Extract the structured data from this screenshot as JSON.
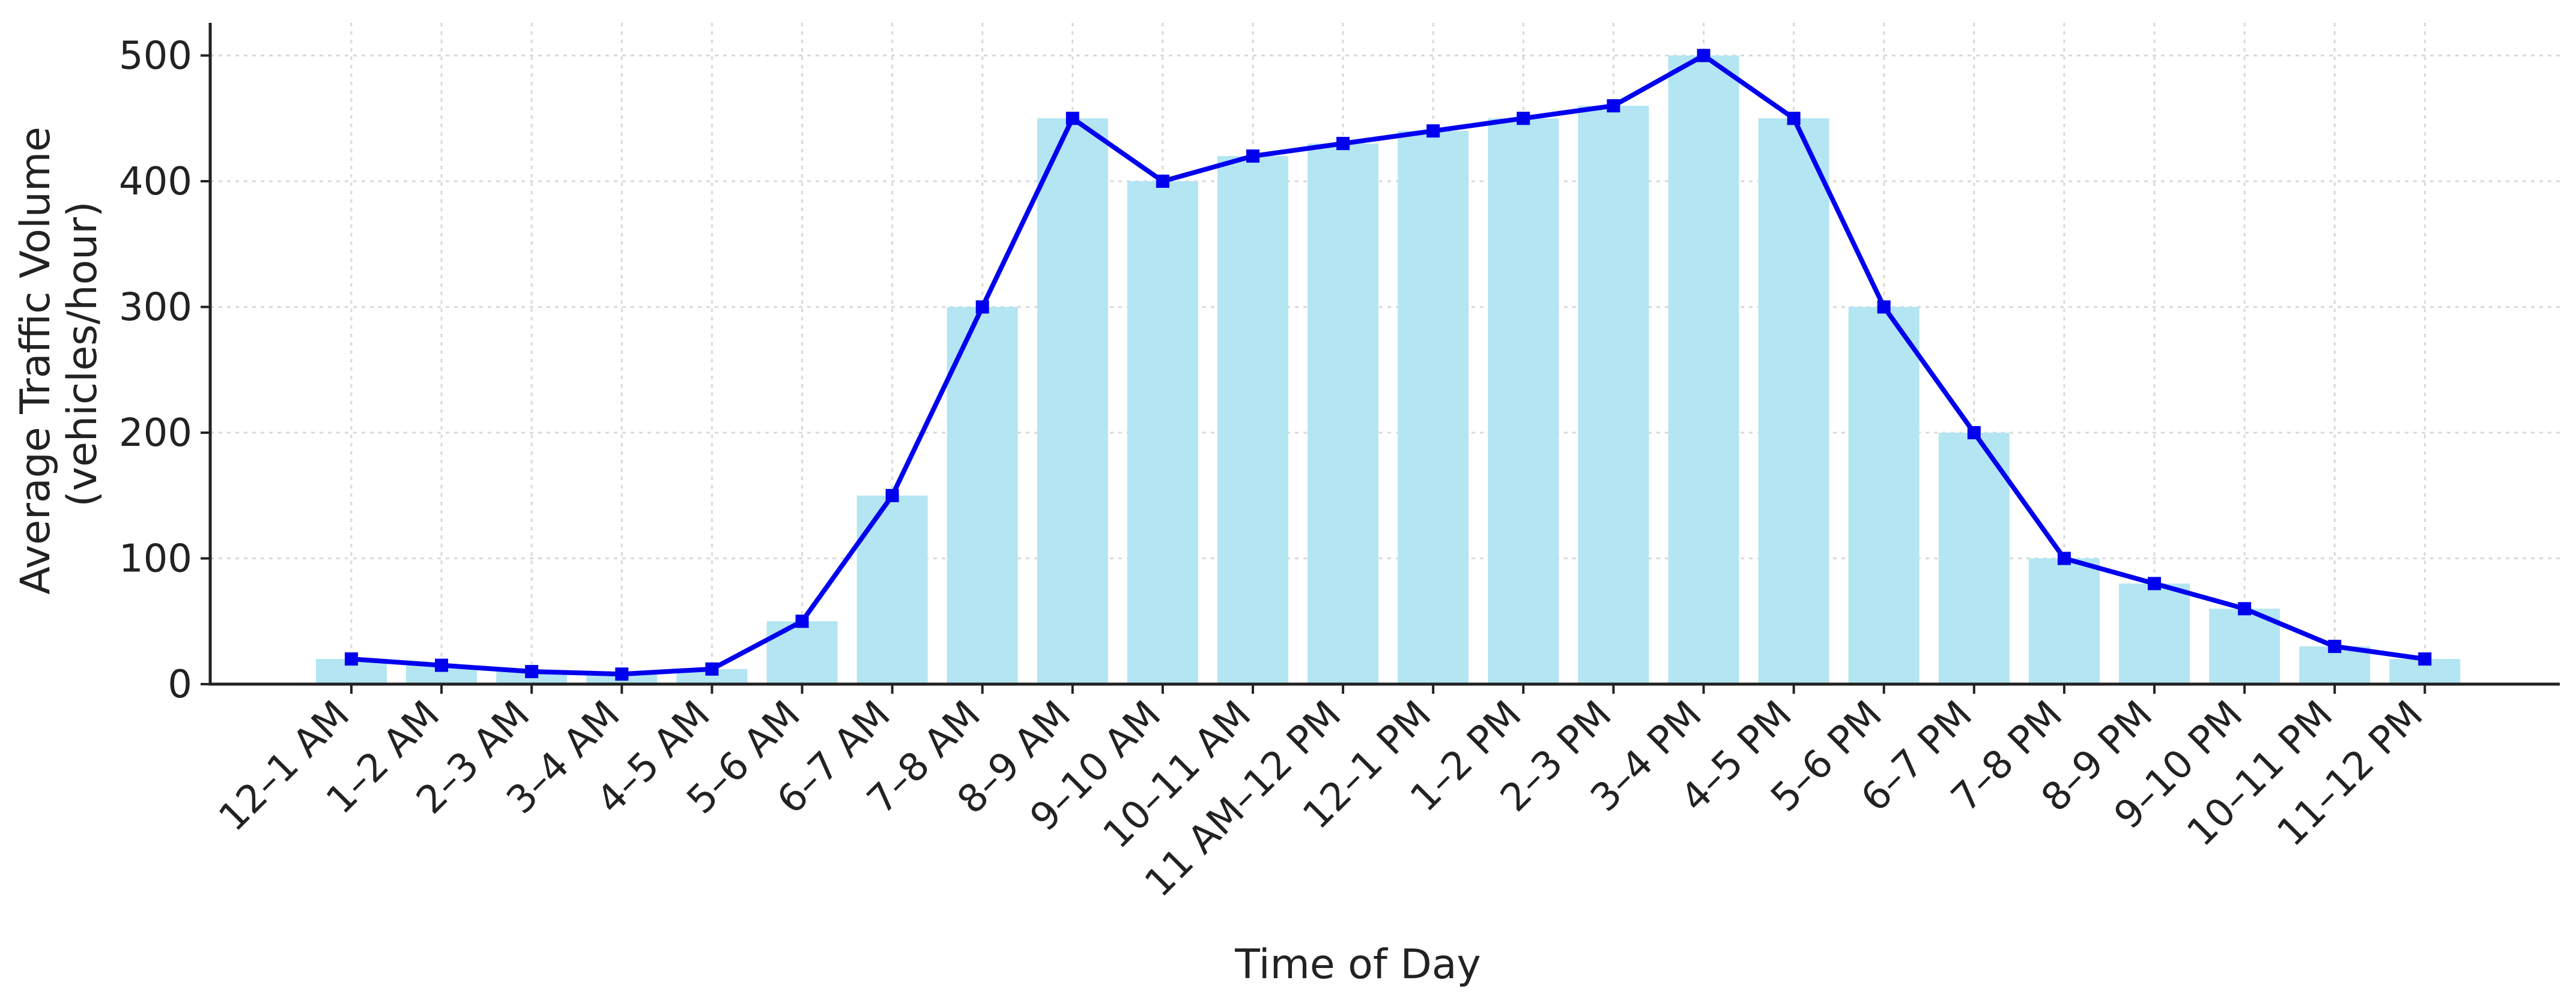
{
  "chart_data": {
    "type": "bar",
    "categories": [
      "12–1 AM",
      "1–2 AM",
      "2–3 AM",
      "3–4 AM",
      "4–5 AM",
      "5–6 AM",
      "6–7 AM",
      "7–8 AM",
      "8–9 AM",
      "9–10 AM",
      "10–11 AM",
      "11 AM–12 PM",
      "12–1 PM",
      "1–2 PM",
      "2–3 PM",
      "3–4 PM",
      "4–5 PM",
      "5–6 PM",
      "6–7 PM",
      "7–8 PM",
      "8–9 PM",
      "9–10 PM",
      "10–11 PM",
      "11–12 PM"
    ],
    "series": [
      {
        "type": "bar",
        "values": [
          20,
          15,
          10,
          8,
          12,
          50,
          150,
          300,
          450,
          400,
          420,
          430,
          440,
          450,
          460,
          500,
          450,
          300,
          200,
          100,
          80,
          60,
          30,
          20
        ]
      },
      {
        "type": "line",
        "values": [
          20,
          15,
          10,
          8,
          12,
          50,
          150,
          300,
          450,
          400,
          420,
          430,
          440,
          450,
          460,
          500,
          450,
          300,
          200,
          100,
          80,
          60,
          30,
          20
        ]
      }
    ],
    "xlabel": "Time of Day",
    "ylabel": [
      "Average Traffic Volume",
      "(vehicles/hour)"
    ],
    "yticks": [
      0,
      100,
      200,
      300,
      400,
      500
    ],
    "ylim": [
      0,
      526
    ],
    "grid": true,
    "colors": {
      "bar": "#b3e5f3",
      "line": "#0000ee",
      "axis": "#222222",
      "grid": "#d9d9d9"
    }
  }
}
